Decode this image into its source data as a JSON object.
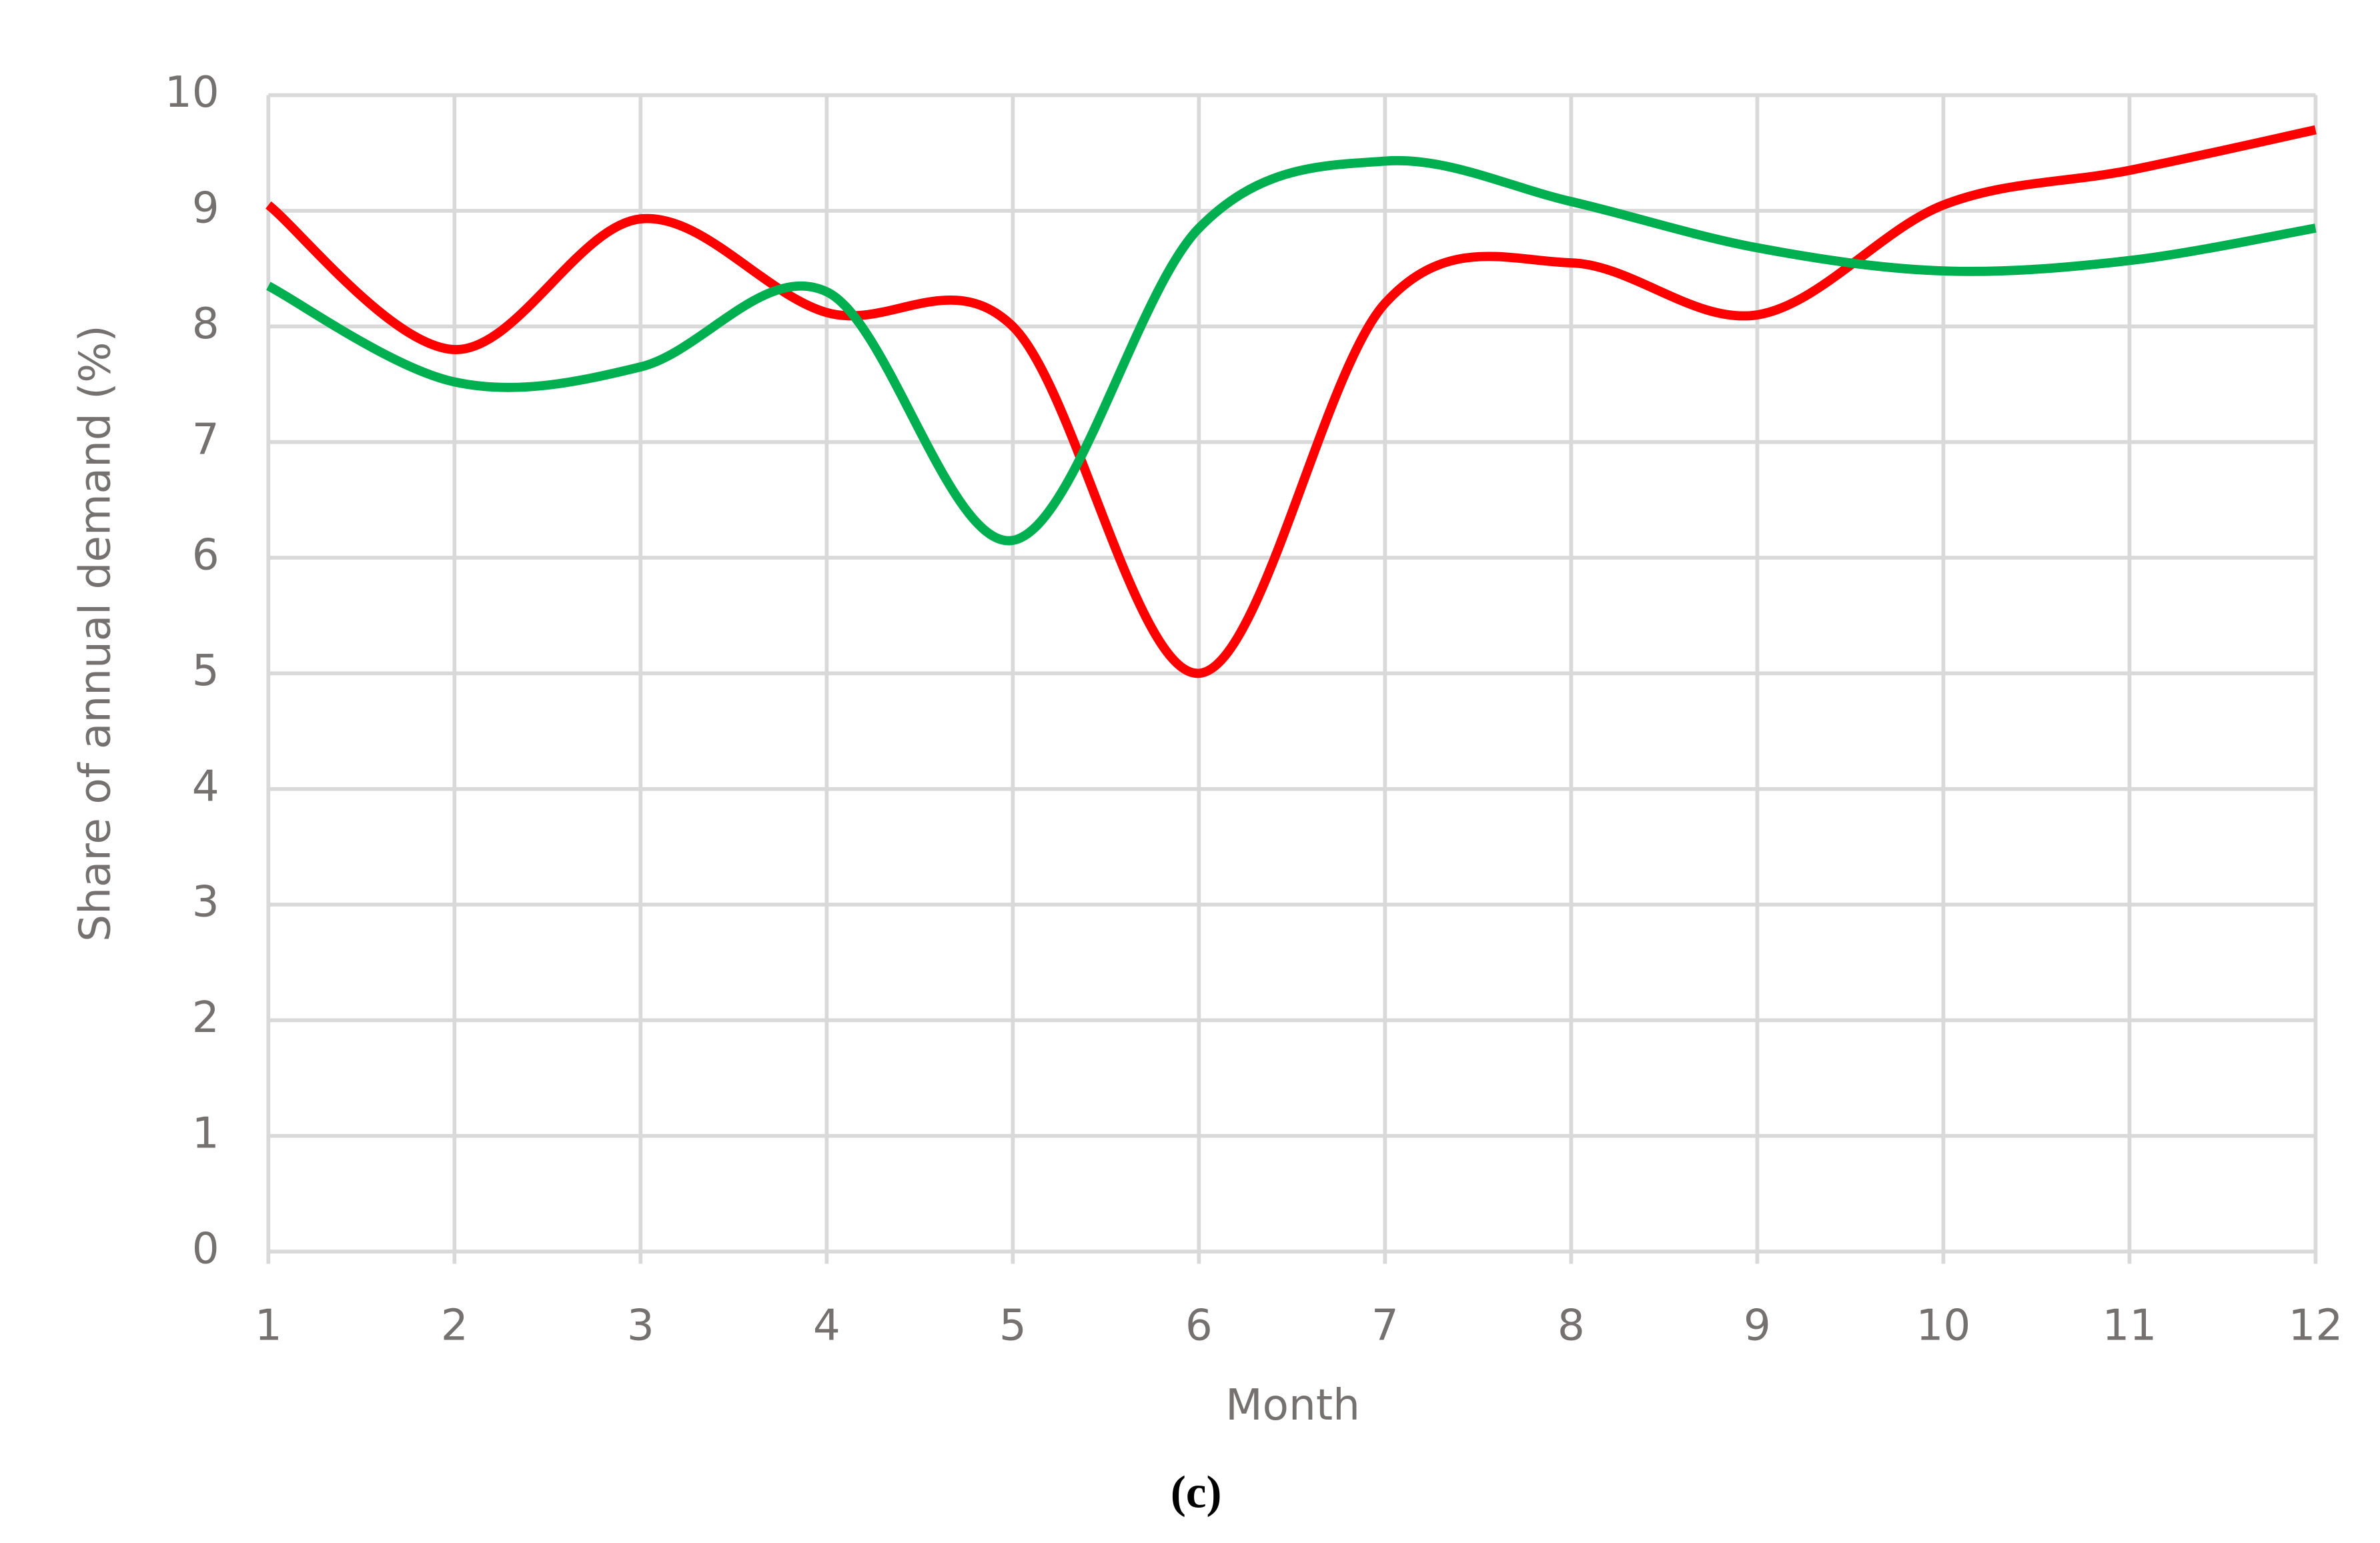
{
  "chart_data": {
    "type": "line",
    "x": [
      1,
      2,
      3,
      4,
      5,
      6,
      7,
      8,
      9,
      10,
      11,
      12
    ],
    "series": [
      {
        "color": "#ff0000",
        "values": [
          9.05,
          7.8,
          8.93,
          8.12,
          8.0,
          5.0,
          8.2,
          8.55,
          8.1,
          9.05,
          9.35,
          9.7
        ]
      },
      {
        "color": "#00b050",
        "values": [
          8.35,
          7.52,
          7.65,
          8.3,
          6.15,
          8.85,
          9.43,
          9.08,
          8.68,
          8.48,
          8.57,
          8.85
        ]
      }
    ],
    "xlim": [
      1,
      12
    ],
    "xticks": [
      1,
      2,
      3,
      4,
      5,
      6,
      7,
      8,
      9,
      10,
      11,
      12
    ],
    "ylim": [
      0,
      10
    ],
    "yticks": [
      0,
      1,
      2,
      3,
      4,
      5,
      6,
      7,
      8,
      9,
      10
    ],
    "x_label": "Month",
    "y_label": "Share of annual demand (%)",
    "grid": true,
    "caption": "(c)"
  }
}
